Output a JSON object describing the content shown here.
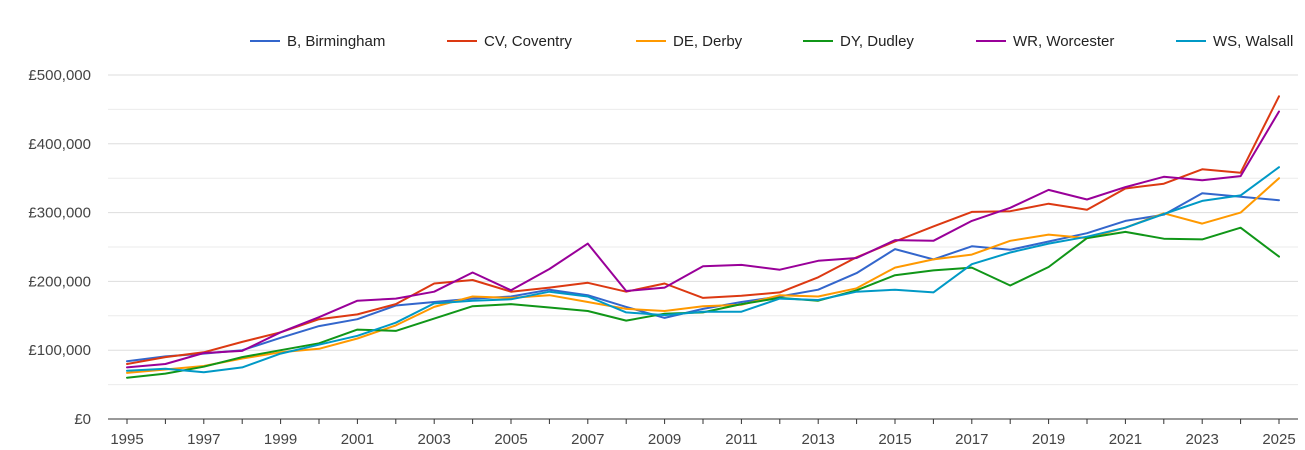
{
  "chart_data": {
    "type": "line",
    "x": [
      1995,
      1996,
      1997,
      1998,
      1999,
      2000,
      2001,
      2002,
      2003,
      2004,
      2005,
      2006,
      2007,
      2008,
      2009,
      2010,
      2011,
      2012,
      2013,
      2014,
      2015,
      2016,
      2017,
      2018,
      2019,
      2020,
      2021,
      2022,
      2023,
      2024,
      2025
    ],
    "x_tick_labels": [
      "1995",
      "1997",
      "1999",
      "2001",
      "2003",
      "2005",
      "2007",
      "2009",
      "2011",
      "2013",
      "2015",
      "2017",
      "2019",
      "2021",
      "2023",
      "2025"
    ],
    "y_ticks": [
      0,
      100000,
      200000,
      300000,
      400000,
      500000
    ],
    "y_tick_labels": [
      "£0",
      "£100,000",
      "£200,000",
      "£300,000",
      "£400,000",
      "£500,000"
    ],
    "ylim": [
      0,
      500000
    ],
    "grid": "horizontal",
    "legend_position": "top",
    "series": [
      {
        "name": "B, Birmingham",
        "color": "#3366cc",
        "values": [
          84000,
          91000,
          95000,
          100000,
          118000,
          135000,
          145000,
          165000,
          170000,
          175000,
          178000,
          188000,
          180000,
          163000,
          147000,
          160000,
          170000,
          178000,
          188000,
          212000,
          247000,
          232000,
          251000,
          246000,
          258000,
          270000,
          288000,
          297000,
          328000,
          323000,
          318000
        ]
      },
      {
        "name": "CV, Coventry",
        "color": "#dc3912",
        "values": [
          80000,
          90000,
          97000,
          112000,
          126000,
          145000,
          152000,
          167000,
          197000,
          202000,
          185000,
          191000,
          198000,
          185000,
          197000,
          176000,
          179000,
          184000,
          206000,
          235000,
          258000,
          280000,
          301000,
          302000,
          313000,
          304000,
          335000,
          342000,
          363000,
          358000,
          469000
        ]
      },
      {
        "name": "DE, Derby",
        "color": "#ff9900",
        "values": [
          67000,
          72000,
          77000,
          88000,
          97000,
          102000,
          117000,
          136000,
          163000,
          178000,
          176000,
          180000,
          170000,
          160000,
          157000,
          164000,
          166000,
          180000,
          178000,
          190000,
          220000,
          232000,
          239000,
          259000,
          268000,
          263000,
          278000,
          299000,
          284000,
          300000,
          350000
        ]
      },
      {
        "name": "DY, Dudley",
        "color": "#109618",
        "values": [
          60000,
          66000,
          76000,
          90000,
          100000,
          110000,
          130000,
          128000,
          146000,
          164000,
          167000,
          162000,
          157000,
          143000,
          153000,
          155000,
          167000,
          176000,
          172000,
          187000,
          209000,
          216000,
          220000,
          194000,
          221000,
          263000,
          272000,
          262000,
          261000,
          278000,
          236000
        ]
      },
      {
        "name": "WR, Worcester",
        "color": "#990099",
        "values": [
          75000,
          80000,
          96000,
          99000,
          126000,
          148000,
          172000,
          175000,
          185000,
          213000,
          187000,
          218000,
          255000,
          186000,
          191000,
          222000,
          224000,
          217000,
          230000,
          234000,
          260000,
          259000,
          288000,
          307000,
          333000,
          319000,
          337000,
          352000,
          347000,
          353000,
          447000
        ]
      },
      {
        "name": "WS, Walsall",
        "color": "#0099c6",
        "values": [
          70000,
          73000,
          68000,
          75000,
          95000,
          108000,
          121000,
          140000,
          168000,
          172000,
          174000,
          185000,
          178000,
          155000,
          151000,
          156000,
          156000,
          175000,
          173000,
          185000,
          188000,
          184000,
          225000,
          242000,
          255000,
          265000,
          278000,
          298000,
          317000,
          325000,
          366000
        ]
      }
    ]
  }
}
